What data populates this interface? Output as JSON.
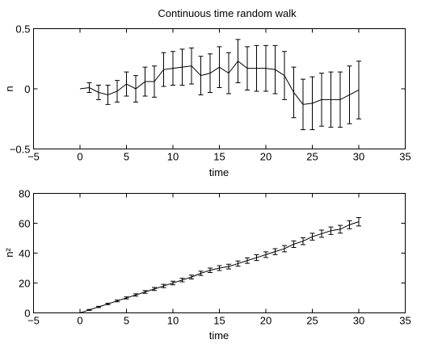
{
  "chart_data": [
    {
      "type": "line",
      "title": "Continuous time random walk",
      "xlabel": "time",
      "ylabel": "n",
      "xlim": [
        -5,
        35
      ],
      "ylim": [
        -0.5,
        0.5
      ],
      "xticks": [
        -5,
        0,
        5,
        10,
        15,
        20,
        25,
        30,
        35
      ],
      "yticks": [
        -0.5,
        0,
        0.5
      ],
      "xtick_labels": [
        "−5",
        "0",
        "5",
        "10",
        "15",
        "20",
        "25",
        "30",
        "35"
      ],
      "ytick_labels": [
        "−0.5",
        "0",
        "0.5"
      ],
      "grid": false,
      "series": [
        {
          "x": [
            0,
            1,
            2,
            3,
            4,
            5,
            6,
            7,
            8,
            9,
            10,
            11,
            12,
            13,
            14,
            15,
            16,
            17,
            18,
            19,
            20,
            21,
            22,
            23,
            24,
            25,
            26,
            27,
            28,
            29,
            30
          ],
          "values": [
            0,
            0.01,
            -0.03,
            -0.05,
            -0.02,
            0.04,
            0.0,
            0.06,
            0.06,
            0.16,
            0.17,
            0.18,
            0.19,
            0.11,
            0.13,
            0.18,
            0.13,
            0.23,
            0.17,
            0.17,
            0.17,
            0.16,
            0.11,
            -0.03,
            -0.13,
            -0.12,
            -0.09,
            -0.09,
            -0.09,
            -0.05,
            -0.01
          ],
          "error": [
            0,
            0.04,
            0.06,
            0.08,
            0.09,
            0.1,
            0.11,
            0.12,
            0.13,
            0.14,
            0.14,
            0.15,
            0.15,
            0.16,
            0.16,
            0.17,
            0.17,
            0.18,
            0.18,
            0.19,
            0.19,
            0.2,
            0.2,
            0.21,
            0.21,
            0.22,
            0.22,
            0.23,
            0.23,
            0.24,
            0.24
          ]
        }
      ]
    },
    {
      "type": "line",
      "title": "",
      "xlabel": "time",
      "ylabel": "n²",
      "xlim": [
        -5,
        35
      ],
      "ylim": [
        0,
        80
      ],
      "xticks": [
        -5,
        0,
        5,
        10,
        15,
        20,
        25,
        30,
        35
      ],
      "yticks": [
        0,
        20,
        40,
        60,
        80
      ],
      "xtick_labels": [
        "−5",
        "0",
        "5",
        "10",
        "15",
        "20",
        "25",
        "30",
        "35"
      ],
      "ytick_labels": [
        "0",
        "20",
        "40",
        "60",
        "80"
      ],
      "grid": false,
      "series": [
        {
          "x": [
            0,
            1,
            2,
            3,
            4,
            5,
            6,
            7,
            8,
            9,
            10,
            11,
            12,
            13,
            14,
            15,
            16,
            17,
            18,
            19,
            20,
            21,
            22,
            23,
            24,
            25,
            26,
            27,
            28,
            29,
            30
          ],
          "values": [
            0,
            2,
            4,
            6,
            8,
            10,
            12,
            14,
            16,
            18,
            20,
            22,
            24,
            26.5,
            28.5,
            30,
            31,
            33,
            35,
            37,
            39,
            41,
            43,
            46,
            48,
            51,
            53,
            55,
            56,
            59,
            61
          ],
          "error": [
            0,
            0.3,
            0.4,
            0.5,
            0.6,
            0.7,
            0.8,
            0.9,
            1.0,
            1.1,
            1.2,
            1.2,
            1.3,
            1.4,
            1.5,
            1.6,
            1.6,
            1.7,
            1.8,
            1.9,
            1.9,
            2.0,
            2.1,
            2.2,
            2.3,
            2.3,
            2.4,
            2.5,
            2.6,
            2.7,
            2.8
          ]
        }
      ]
    }
  ]
}
